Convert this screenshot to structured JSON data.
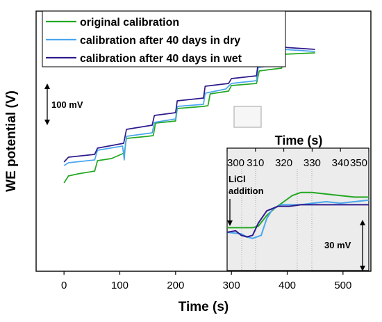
{
  "chart_data": [
    {
      "type": "line",
      "xlabel": "Time (s)",
      "ylabel": "WE potential (V)",
      "xlim": [
        -50,
        550
      ],
      "x_ticks": [
        0,
        100,
        200,
        300,
        400,
        500
      ],
      "y_ticks_shown": false,
      "scale_bar": {
        "label": "100 mV",
        "mV": 100
      },
      "zoom_box_x_range": [
        302,
        350
      ],
      "legend": {
        "placement": "top-left"
      },
      "series": [
        {
          "name": "original calibration",
          "color": "#22a822",
          "points": [
            [
              0,
              -195
            ],
            [
              8,
              -185
            ],
            [
              25,
              -182
            ],
            [
              55,
              -178
            ],
            [
              60,
              -163
            ],
            [
              85,
              -160
            ],
            [
              108,
              -152
            ],
            [
              112,
              -131
            ],
            [
              150,
              -128
            ],
            [
              160,
              -127
            ],
            [
              164,
              -109
            ],
            [
              200,
              -106
            ],
            [
              203,
              -88
            ],
            [
              250,
              -85
            ],
            [
              258,
              -84
            ],
            [
              262,
              -67
            ],
            [
              295,
              -63
            ],
            [
              300,
              -55
            ],
            [
              345,
              -52
            ],
            [
              350,
              -34
            ],
            [
              390,
              -30
            ],
            [
              395,
              -10
            ],
            [
              450,
              -8
            ]
          ]
        },
        {
          "name": "calibration after 40 days in dry",
          "color": "#4aa6ee",
          "points": [
            [
              0,
              -170
            ],
            [
              8,
              -166
            ],
            [
              55,
              -162
            ],
            [
              60,
              -148
            ],
            [
              105,
              -142
            ],
            [
              108,
              -162
            ],
            [
              110,
              -140
            ],
            [
              112,
              -128
            ],
            [
              158,
              -123
            ],
            [
              162,
              -108
            ],
            [
              200,
              -103
            ],
            [
              203,
              -85
            ],
            [
              250,
              -82
            ],
            [
              253,
              -66
            ],
            [
              290,
              -60
            ],
            [
              300,
              -52
            ],
            [
              345,
              -48
            ],
            [
              348,
              -29
            ],
            [
              390,
              -25
            ],
            [
              393,
              -3
            ],
            [
              450,
              -6
            ]
          ]
        },
        {
          "name": "calibration after 40 days in wet",
          "color": "#2e1a8c",
          "points": [
            [
              0,
              -165
            ],
            [
              8,
              -158
            ],
            [
              55,
              -154
            ],
            [
              60,
              -145
            ],
            [
              107,
              -138
            ],
            [
              112,
              -118
            ],
            [
              158,
              -112
            ],
            [
              162,
              -98
            ],
            [
              200,
              -94
            ],
            [
              203,
              -77
            ],
            [
              250,
              -73
            ],
            [
              253,
              -56
            ],
            [
              295,
              -52
            ],
            [
              300,
              -45
            ],
            [
              345,
              -41
            ],
            [
              348,
              -22
            ],
            [
              390,
              -18
            ],
            [
              393,
              0
            ],
            [
              450,
              -3
            ]
          ]
        }
      ]
    },
    {
      "type": "line",
      "title": "Time (s)",
      "xlim": [
        300,
        350
      ],
      "x_ticks": [
        300,
        310,
        320,
        330,
        340,
        350
      ],
      "annotation": "LiCl addition",
      "scale_bar": {
        "label": "30 mV",
        "mV": 30
      },
      "series": [
        {
          "name": "original calibration",
          "color": "#22a822",
          "points": [
            [
              300,
              8
            ],
            [
              303,
              8
            ],
            [
              304,
              8
            ],
            [
              309,
              8
            ],
            [
              311,
              9
            ],
            [
              314,
              16
            ],
            [
              317,
              21
            ],
            [
              320,
              25
            ],
            [
              323,
              29
            ],
            [
              326,
              31
            ],
            [
              330,
              31
            ],
            [
              335,
              30
            ],
            [
              340,
              29
            ],
            [
              345,
              28
            ],
            [
              350,
              28
            ]
          ]
        },
        {
          "name": "calibration after 40 days in dry",
          "color": "#4aa6ee",
          "points": [
            [
              300,
              5
            ],
            [
              305,
              4
            ],
            [
              307,
              2
            ],
            [
              309,
              1
            ],
            [
              312,
              3
            ],
            [
              314,
              14
            ],
            [
              316,
              20
            ],
            [
              319,
              23
            ],
            [
              322,
              23
            ],
            [
              326,
              23
            ],
            [
              330,
              24
            ],
            [
              335,
              25
            ],
            [
              340,
              24
            ],
            [
              345,
              25
            ],
            [
              350,
              26
            ]
          ]
        },
        {
          "name": "calibration after 40 days in wet",
          "color": "#2e1a8c",
          "points": [
            [
              300,
              5
            ],
            [
              303,
              6
            ],
            [
              305,
              3
            ],
            [
              307,
              2
            ],
            [
              309,
              3
            ],
            [
              311,
              11
            ],
            [
              314,
              19
            ],
            [
              318,
              22
            ],
            [
              322,
              22
            ],
            [
              326,
              23
            ],
            [
              330,
              23
            ],
            [
              335,
              23
            ],
            [
              340,
              23
            ],
            [
              345,
              23
            ],
            [
              350,
              23
            ]
          ]
        }
      ]
    }
  ],
  "inset_ticks": [
    "300",
    "310",
    "320",
    "330",
    "340",
    "350"
  ],
  "main_ticks": [
    "0",
    "100",
    "200",
    "300",
    "400",
    "500"
  ]
}
